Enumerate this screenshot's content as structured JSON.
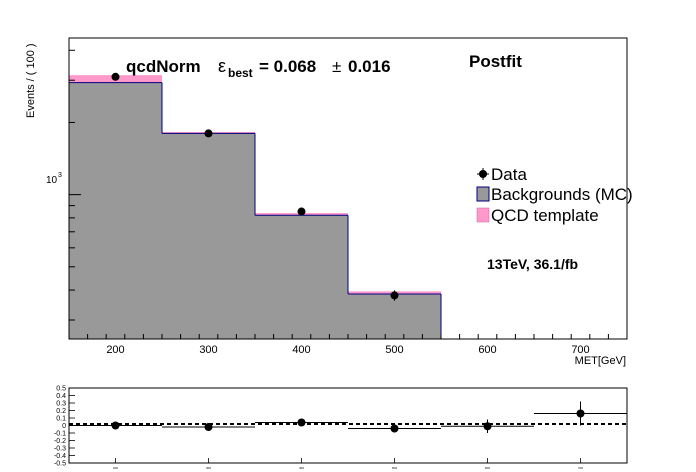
{
  "chart_data": [
    {
      "type": "bar",
      "title": "",
      "xlabel": "MET[GeV]",
      "ylabel": "Events / ( 100 )",
      "y_scale": "log",
      "xlim": [
        150,
        750
      ],
      "ylim": [
        250,
        4500
      ],
      "x_ticks": [
        200,
        300,
        400,
        500,
        600,
        700
      ],
      "y_tick_label": {
        "base": "10",
        "exp": "3",
        "value": 1000
      },
      "bin_edges": [
        150,
        250,
        350,
        450,
        550,
        650,
        750
      ],
      "series": [
        {
          "name": "Backgrounds (MC)",
          "type": "histogram",
          "color": "#999999",
          "values": [
            2930,
            1800,
            820,
            385,
            0,
            0
          ]
        },
        {
          "name": "QCD template",
          "type": "stacked-histogram",
          "color": "#ff99cc",
          "values": [
            220,
            25,
            18,
            10,
            0,
            0
          ]
        },
        {
          "name": "Data",
          "type": "points",
          "color": "#000000",
          "x": [
            200,
            300,
            400,
            500
          ],
          "values": [
            3100,
            1800,
            850,
            380
          ],
          "errors": [
            56,
            42,
            29,
            19
          ]
        }
      ],
      "fit_label": {
        "prefix": "qcdNorm",
        "eps": "ε",
        "sub": "best",
        "value": "= 0.068",
        "pm": "±",
        "err": "0.016"
      },
      "postfit_label": "Postfit",
      "lumi_label": "13TeV, 36.1/fb",
      "legend": {
        "placement": "right",
        "entries": [
          "Data",
          "Backgrounds (MC)",
          "QCD template"
        ]
      },
      "colors": {
        "mc_fill": "#999999",
        "mc_line": "#000080",
        "qcd_fill": "#ff99cc",
        "data": "#000000"
      }
    },
    {
      "type": "scatter",
      "title": "",
      "xlabel": "",
      "ylabel": "",
      "xlim": [
        150,
        750
      ],
      "ylim": [
        -0.5,
        0.5
      ],
      "y_ticks": [
        "0.5",
        "0.4",
        "0.3",
        "0.2",
        "0.1",
        "0",
        "-0.1",
        "-0.2",
        "-0.3",
        "-0.4",
        "-0.5"
      ],
      "x_ticks": [
        "200",
        "300",
        "400",
        "500",
        "600",
        "700"
      ],
      "reference_line": 0,
      "points": [
        {
          "x": 200,
          "y": 0.0,
          "yerr": 0.02,
          "xerr": 50
        },
        {
          "x": 300,
          "y": -0.02,
          "yerr": 0.03,
          "xerr": 50
        },
        {
          "x": 400,
          "y": 0.04,
          "yerr": 0.04,
          "xerr": 50
        },
        {
          "x": 500,
          "y": -0.04,
          "yerr": 0.05,
          "xerr": 50
        },
        {
          "x": 600,
          "y": -0.01,
          "yerr": 0.09,
          "xerr": 50
        },
        {
          "x": 700,
          "y": 0.16,
          "yerr": 0.16,
          "xerr": 50
        }
      ]
    }
  ]
}
